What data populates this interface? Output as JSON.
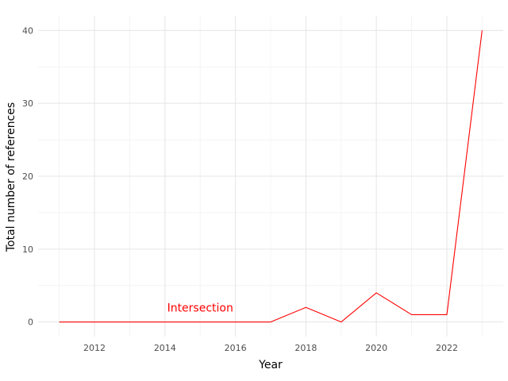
{
  "chart_data": {
    "type": "line",
    "title": "",
    "xlabel": "Year",
    "ylabel": "Total number of references",
    "x": [
      2011,
      2012,
      2013,
      2014,
      2015,
      2016,
      2017,
      2018,
      2019,
      2020,
      2021,
      2022,
      2023
    ],
    "series": [
      {
        "values": [
          0,
          0,
          0,
          0,
          0,
          0,
          0,
          2,
          0,
          4,
          1,
          1,
          40
        ],
        "color": "#ff0000"
      }
    ],
    "xlim": [
      2010.4,
      2023.6
    ],
    "ylim": [
      -2,
      42
    ],
    "x_ticks": [
      2012,
      2014,
      2016,
      2018,
      2020,
      2022
    ],
    "y_ticks": [
      0,
      10,
      20,
      30,
      40
    ],
    "x_tick_labels": [
      "2012",
      "2014",
      "2016",
      "2018",
      "2020",
      "2022"
    ],
    "y_tick_labels": [
      "0",
      "10",
      "20",
      "30",
      "40"
    ],
    "grid": true,
    "legend": "none",
    "annotations": [
      {
        "text": "Intersection",
        "x": 2015,
        "y": 2,
        "color": "#ff0000"
      }
    ]
  }
}
